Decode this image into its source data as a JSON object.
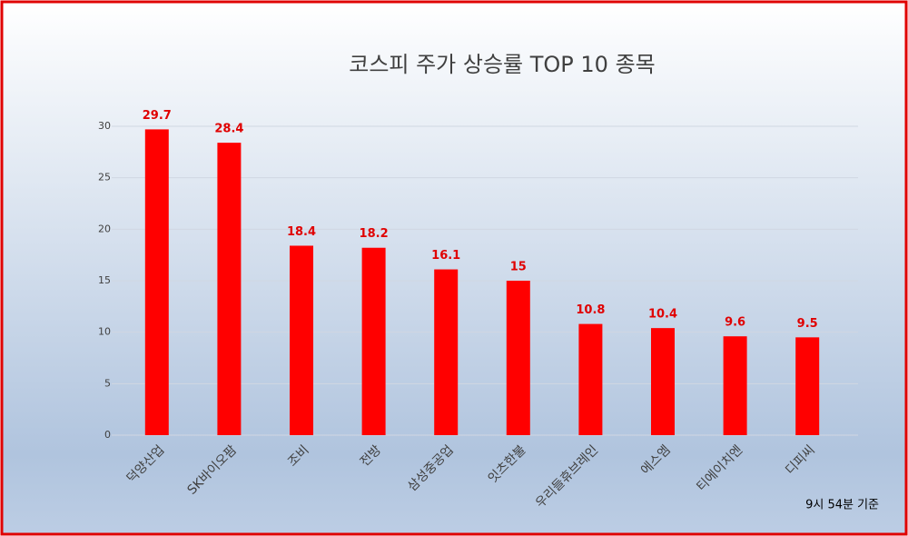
{
  "chart_data": {
    "type": "bar",
    "title": "코스피 주가 상승률 TOP 10 종목",
    "categories": [
      "덕양산업",
      "SK바이오팜",
      "조비",
      "전방",
      "삼성중공업",
      "잇츠한불",
      "우리들휴브레인",
      "에스엠",
      "티에이치엔",
      "디피씨"
    ],
    "values": [
      29.7,
      28.4,
      18.4,
      18.2,
      16.1,
      15,
      10.8,
      10.4,
      9.6,
      9.5
    ],
    "color": "#ff0000",
    "ylim": [
      0,
      30
    ],
    "yticks": [
      0,
      5,
      10,
      15,
      20,
      25,
      30
    ],
    "grid": true,
    "annotation": "9시 54분 기준"
  }
}
